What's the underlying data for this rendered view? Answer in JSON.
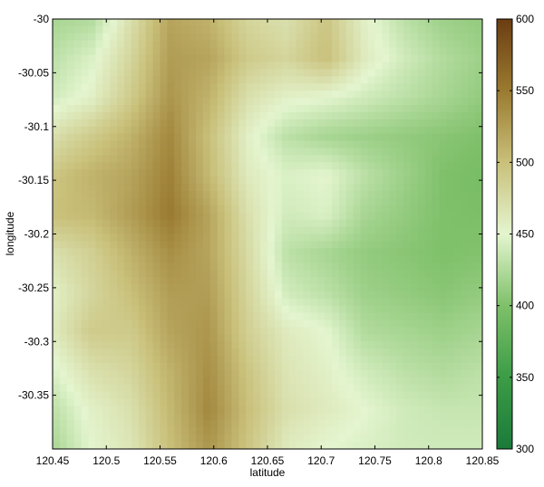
{
  "chart_data": {
    "type": "heatmap",
    "title": "",
    "xlabel": "latitude",
    "ylabel": "longitude",
    "xlim": [
      120.45,
      120.85
    ],
    "ylim": [
      -30.4,
      -30.0
    ],
    "y_reversed": true,
    "xticks": [
      "120.45",
      "120.5",
      "120.55",
      "120.6",
      "120.65",
      "120.7",
      "120.75",
      "120.8",
      "120.85"
    ],
    "xtick_values": [
      120.45,
      120.5,
      120.55,
      120.6,
      120.65,
      120.7,
      120.75,
      120.8,
      120.85
    ],
    "yticks": [
      "-30",
      "-30.05",
      "-30.1",
      "-30.15",
      "-30.2",
      "-30.25",
      "-30.3",
      "-30.35"
    ],
    "ytick_values": [
      -30.0,
      -30.05,
      -30.1,
      -30.15,
      -30.2,
      -30.25,
      -30.3,
      -30.35
    ],
    "colorbar": {
      "range": [
        300,
        600
      ],
      "ticks": [
        "300",
        "350",
        "400",
        "450",
        "500",
        "550",
        "600"
      ],
      "tick_values": [
        300,
        350,
        400,
        450,
        500,
        550,
        600
      ],
      "colors": [
        "#1b7a3a",
        "#3c9c46",
        "#7fc06a",
        "#e4f5cf",
        "#c9c07a",
        "#9a7a30",
        "#6b3d12"
      ]
    },
    "description_grid": {
      "rows_lat_from": -30.0,
      "rows_lat_to": -30.4,
      "cols_lon_from": 120.45,
      "cols_lon_to": 120.85,
      "values": [
        [
          420,
          425,
          470,
          520,
          510,
          480,
          470,
          495,
          455,
          430,
          415,
          410
        ],
        [
          430,
          445,
          480,
          525,
          520,
          490,
          480,
          500,
          460,
          440,
          425,
          415
        ],
        [
          440,
          455,
          490,
          530,
          510,
          470,
          455,
          450,
          440,
          430,
          420,
          410
        ],
        [
          470,
          490,
          510,
          540,
          500,
          455,
          430,
          420,
          415,
          410,
          405,
          400
        ],
        [
          495,
          510,
          520,
          545,
          505,
          460,
          445,
          450,
          430,
          415,
          400,
          395
        ],
        [
          500,
          505,
          525,
          550,
          520,
          470,
          440,
          445,
          420,
          410,
          400,
          398
        ],
        [
          470,
          485,
          510,
          535,
          520,
          475,
          430,
          420,
          410,
          405,
          400,
          402
        ],
        [
          455,
          480,
          500,
          525,
          525,
          480,
          440,
          430,
          415,
          410,
          405,
          410
        ],
        [
          460,
          490,
          490,
          520,
          530,
          485,
          460,
          450,
          425,
          420,
          415,
          420
        ],
        [
          445,
          470,
          480,
          510,
          535,
          495,
          465,
          455,
          440,
          430,
          425,
          430
        ],
        [
          430,
          455,
          470,
          505,
          540,
          500,
          470,
          460,
          450,
          440,
          435,
          435
        ],
        [
          420,
          450,
          465,
          500,
          530,
          495,
          460,
          450,
          445,
          440,
          440,
          440
        ]
      ]
    }
  }
}
